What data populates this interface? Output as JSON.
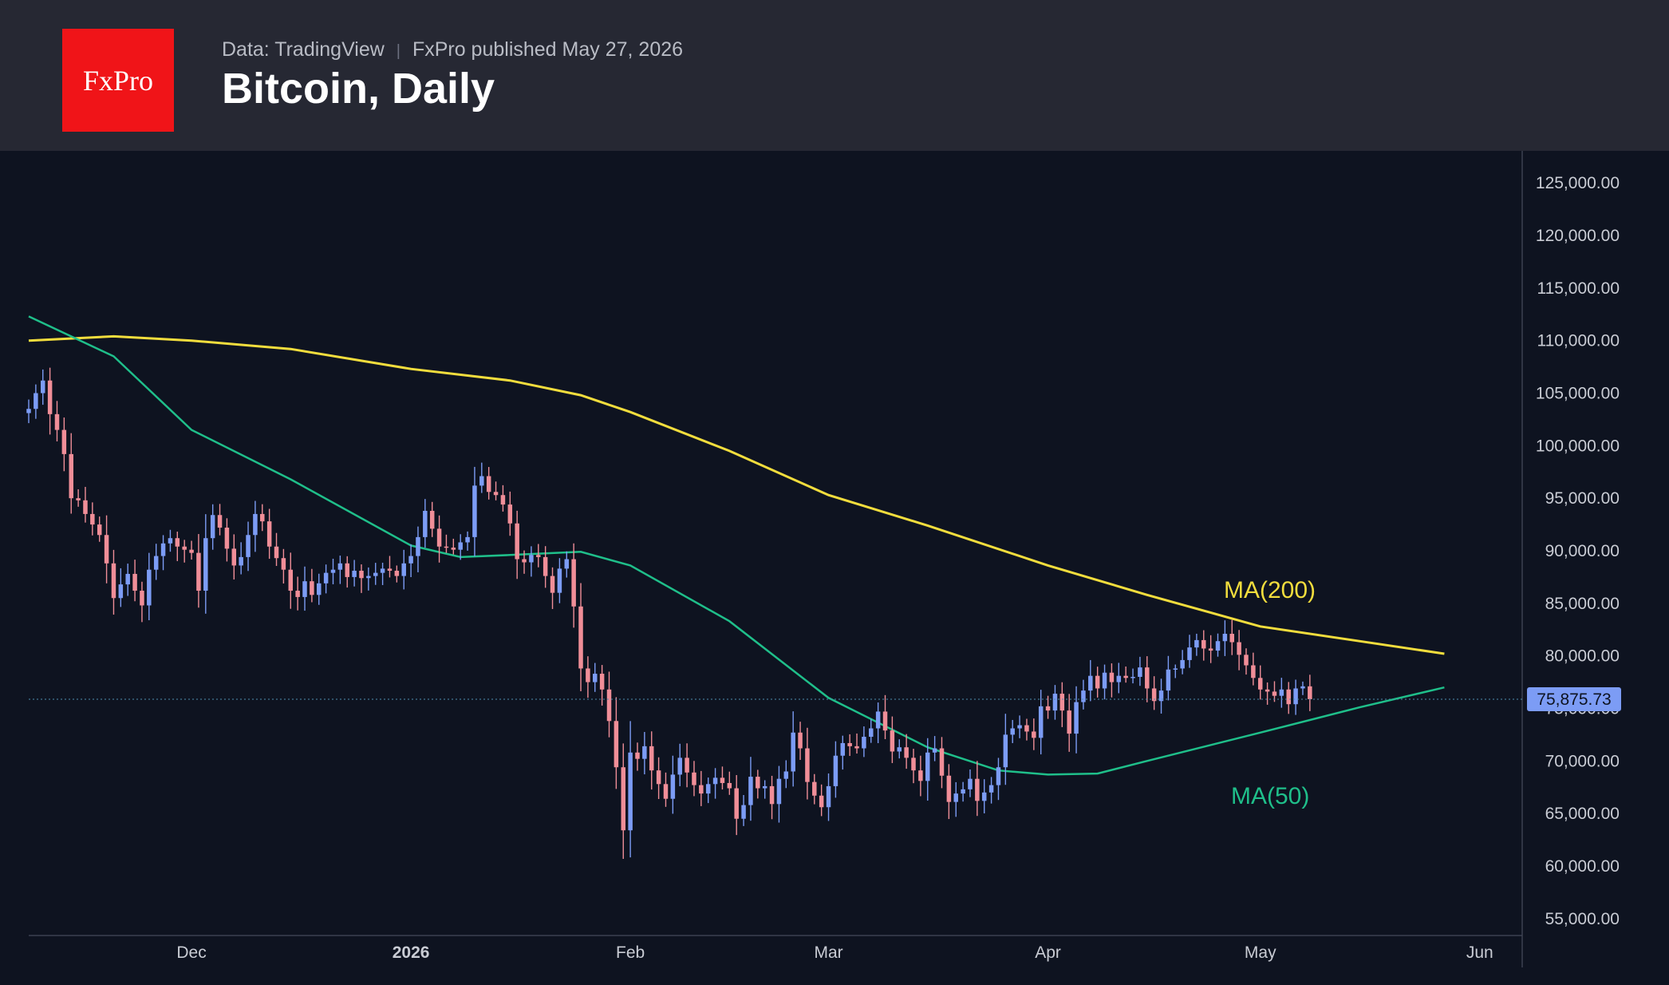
{
  "header": {
    "logo_text": "FxPro",
    "source": "Data: TradingView",
    "published": "FxPro published May 27, 2026",
    "title": "Bitcoin, Daily"
  },
  "colors": {
    "background": "#0e1320",
    "header_bg": "#262833",
    "logo_red": "#f01418",
    "up_candle": "#7c9cf5",
    "down_candle": "#f08e98",
    "ma200": "#f2dd3d",
    "ma50": "#1fbf8a",
    "price_tag": "#7c9cf5"
  },
  "chart_data": {
    "type": "candlestick",
    "title": "Bitcoin, Daily",
    "ylim": [
      52500,
      127500
    ],
    "y_ticks": [
      "125,000.00",
      "120,000.00",
      "115,000.00",
      "110,000.00",
      "105,000.00",
      "100,000.00",
      "95,000.00",
      "90,000.00",
      "85,000.00",
      "80,000.00",
      "75,000.00",
      "70,000.00",
      "65,000.00",
      "60,000.00",
      "55,000.00"
    ],
    "y_tick_values": [
      125000,
      120000,
      115000,
      110000,
      105000,
      100000,
      95000,
      90000,
      85000,
      80000,
      75000,
      70000,
      65000,
      60000,
      55000
    ],
    "x_ticks": [
      {
        "label": "Dec",
        "date": "2025-12-01",
        "bold": false
      },
      {
        "label": "2026",
        "date": "2026-01-01",
        "bold": true
      },
      {
        "label": "Feb",
        "date": "2026-02-01",
        "bold": false
      },
      {
        "label": "Mar",
        "date": "2026-03-01",
        "bold": false
      },
      {
        "label": "Apr",
        "date": "2026-04-01",
        "bold": false
      },
      {
        "label": "May",
        "date": "2026-05-01",
        "bold": false
      },
      {
        "label": "Jun",
        "date": "2026-06-01",
        "bold": false
      }
    ],
    "x_range": [
      "2025-11-08",
      "2026-06-07"
    ],
    "first_date": "2025-11-08",
    "closes": [
      103500,
      105000,
      106200,
      103000,
      101500,
      99200,
      95000,
      94800,
      93500,
      92500,
      91500,
      88800,
      85500,
      86800,
      87800,
      86200,
      84800,
      88200,
      89500,
      90700,
      91200,
      90400,
      90100,
      89800,
      86200,
      91200,
      93400,
      92200,
      90200,
      88600,
      89400,
      91500,
      93500,
      92800,
      90400,
      89300,
      88200,
      86200,
      85600,
      87100,
      85800,
      86900,
      87900,
      88200,
      88800,
      87500,
      88100,
      87400,
      87600,
      87900,
      88300,
      88100,
      87600,
      88800,
      89500,
      91300,
      93800,
      92100,
      90400,
      90300,
      90100,
      90800,
      91300,
      96200,
      97100,
      95600,
      95300,
      94400,
      92600,
      89200,
      88900,
      89600,
      89400,
      87600,
      86000,
      88300,
      89200,
      84700,
      78800,
      77500,
      78300,
      76800,
      73800,
      69400,
      63400,
      70800,
      70200,
      71400,
      69100,
      67800,
      66400,
      68700,
      70300,
      68900,
      67700,
      66900,
      67800,
      68400,
      67900,
      67400,
      64500,
      65800,
      68500,
      67400,
      67600,
      65900,
      68300,
      69000,
      72700,
      71200,
      68000,
      66700,
      65600,
      67600,
      70500,
      71700,
      71400,
      71200,
      72300,
      73100,
      74700,
      72900,
      70900,
      71300,
      70300,
      69100,
      68100,
      70800,
      71200,
      68600,
      66100,
      66900,
      67300,
      68300,
      66200,
      67000,
      67700,
      69400,
      72500,
      73100,
      73400,
      72800,
      72200,
      75200,
      74800,
      76400,
      74800,
      72600,
      75600,
      76700,
      78100,
      76900,
      78400,
      77500,
      78100,
      77900,
      78000,
      78900,
      76900,
      75700,
      76700,
      78700,
      78800,
      79600,
      80800,
      81500,
      80700,
      80500,
      81400,
      82100,
      81300,
      80100,
      79100,
      77900,
      76800,
      76600,
      76200,
      76800,
      75400,
      76900,
      77100,
      75875.73
    ],
    "series": [
      {
        "name": "MA(200)",
        "label_text": "MA(200)",
        "label_color": "#f2dd3d"
      },
      {
        "name": "MA(50)",
        "label_text": "MA(50)",
        "label_color": "#1fbf8a"
      }
    ],
    "ma200": [
      [
        "2025-11-08",
        110000
      ],
      [
        "2025-11-20",
        110400
      ],
      [
        "2025-12-01",
        110000
      ],
      [
        "2025-12-15",
        109200
      ],
      [
        "2026-01-01",
        107300
      ],
      [
        "2026-01-15",
        106200
      ],
      [
        "2026-01-25",
        104800
      ],
      [
        "2026-02-01",
        103200
      ],
      [
        "2026-02-15",
        99500
      ],
      [
        "2026-03-01",
        95300
      ],
      [
        "2026-03-15",
        92400
      ],
      [
        "2026-04-01",
        88600
      ],
      [
        "2026-04-15",
        85800
      ],
      [
        "2026-05-01",
        82800
      ],
      [
        "2026-05-15",
        81400
      ],
      [
        "2026-05-27",
        80200
      ]
    ],
    "ma50": [
      [
        "2025-11-08",
        112300
      ],
      [
        "2025-11-20",
        108500
      ],
      [
        "2025-12-01",
        101500
      ],
      [
        "2025-12-15",
        96800
      ],
      [
        "2026-01-01",
        90500
      ],
      [
        "2026-01-08",
        89400
      ],
      [
        "2026-01-15",
        89600
      ],
      [
        "2026-01-25",
        89900
      ],
      [
        "2026-02-01",
        88600
      ],
      [
        "2026-02-15",
        83300
      ],
      [
        "2026-03-01",
        76000
      ],
      [
        "2026-03-15",
        71300
      ],
      [
        "2026-03-25",
        69100
      ],
      [
        "2026-04-01",
        68700
      ],
      [
        "2026-04-08",
        68800
      ],
      [
        "2026-04-15",
        70000
      ],
      [
        "2026-05-01",
        72700
      ],
      [
        "2026-05-15",
        75100
      ],
      [
        "2026-05-27",
        77000
      ]
    ],
    "last_price": 75875.73,
    "last_price_label": "75,875.73"
  }
}
